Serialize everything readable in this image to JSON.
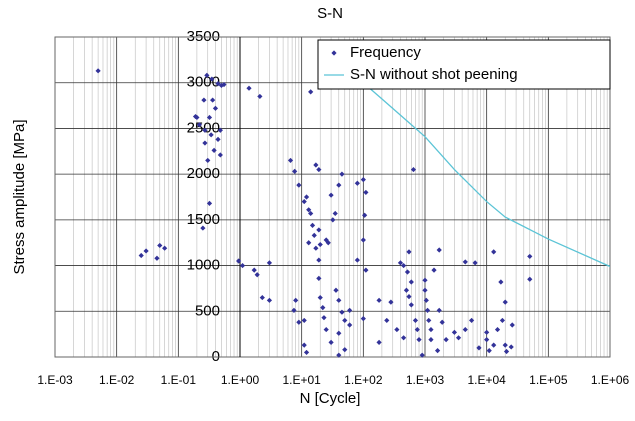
{
  "chart_data": {
    "type": "scatter",
    "title": "S-N",
    "x_label": "N [Cycle]",
    "y_label": "Stress amplitude [MPa]",
    "xscale": "log",
    "xlim": [
      0.001,
      1000000
    ],
    "xticks": [
      {
        "value": 0.001,
        "label": "1.E-03"
      },
      {
        "value": 0.01,
        "label": "1.E-02"
      },
      {
        "value": 0.1,
        "label": "1.E-01"
      },
      {
        "value": 1,
        "label": "1.E+00"
      },
      {
        "value": 10,
        "label": "1.E+01"
      },
      {
        "value": 100,
        "label": "1.E+02"
      },
      {
        "value": 1000,
        "label": "1.E+03"
      },
      {
        "value": 10000,
        "label": "1.E+04"
      },
      {
        "value": 100000,
        "label": "1.E+05"
      },
      {
        "value": 1000000,
        "label": "1.E+06"
      }
    ],
    "ylim": [
      0,
      3500
    ],
    "yticks": [
      0,
      500,
      1000,
      1500,
      2000,
      2500,
      3000,
      3500
    ],
    "y_axis_crosses_x": 1,
    "grid": true,
    "minor_grid": true,
    "legend": "top-right",
    "series": [
      {
        "name": "Frequency",
        "mode": "markers",
        "color": "#333399",
        "x": [
          0.005,
          0.025,
          0.03,
          0.045,
          0.05,
          0.06,
          0.19,
          0.22,
          0.26,
          0.29,
          0.32,
          0.35,
          0.36,
          0.4,
          0.44,
          0.48,
          0.32,
          0.44,
          0.55,
          0.27,
          0.34,
          0.38,
          0.48,
          0.2,
          0.27,
          0.25,
          0.3,
          0.5,
          1.4,
          2.1,
          0.95,
          1.1,
          1.7,
          1.9,
          2.3,
          3,
          3,
          6.6,
          7.7,
          9,
          11,
          12,
          13,
          14,
          15,
          16,
          17,
          19,
          19,
          20,
          22,
          23,
          25,
          14,
          17,
          19,
          27,
          30,
          32,
          35,
          40,
          45,
          13,
          19,
          20,
          25,
          8,
          7.5,
          9,
          11,
          12,
          36,
          40,
          45,
          50,
          60,
          40,
          30,
          50,
          80,
          100,
          110,
          105,
          80,
          100,
          110,
          180,
          240,
          280,
          350,
          450,
          500,
          550,
          600,
          700,
          750,
          800,
          600,
          520,
          450,
          400,
          550,
          650,
          1000,
          1000,
          1050,
          1100,
          1150,
          1250,
          1250,
          1400,
          1700,
          1700,
          1900,
          1600,
          2200,
          3000,
          3500,
          4500,
          5700,
          7500,
          10000,
          11000,
          13000,
          15000,
          18000,
          20000,
          25000,
          26000,
          17000,
          13000,
          4500,
          6500,
          20000,
          21000,
          10000,
          50000,
          50000,
          900,
          40,
          11,
          100,
          180,
          60
        ],
        "values": [
          3130,
          1110,
          1160,
          1080,
          1220,
          1190,
          2630,
          2540,
          2810,
          3080,
          2620,
          3040,
          2810,
          2720,
          2380,
          2210,
          1680,
          2990,
          2980,
          2480,
          2430,
          2260,
          2480,
          2620,
          2340,
          1410,
          2150,
          2970,
          2940,
          2850,
          1050,
          1000,
          950,
          900,
          650,
          620,
          1030,
          2150,
          2030,
          1880,
          1700,
          1750,
          1610,
          1570,
          1440,
          1330,
          1190,
          1060,
          860,
          650,
          540,
          430,
          300,
          2900,
          2100,
          2050,
          1250,
          1770,
          1500,
          1570,
          1880,
          2000,
          1250,
          1390,
          1230,
          1280,
          620,
          510,
          380,
          130,
          50,
          730,
          620,
          490,
          400,
          350,
          260,
          160,
          80,
          1060,
          1280,
          950,
          1550,
          1900,
          1940,
          1800,
          160,
          400,
          600,
          300,
          210,
          730,
          660,
          570,
          400,
          300,
          190,
          820,
          930,
          1000,
          1030,
          1150,
          2050,
          840,
          730,
          620,
          510,
          400,
          300,
          190,
          950,
          1170,
          510,
          380,
          70,
          190,
          270,
          210,
          300,
          400,
          100,
          190,
          70,
          130,
          300,
          400,
          130,
          110,
          350,
          820,
          1150,
          1040,
          1030,
          600,
          60,
          270,
          1100,
          850,
          20,
          20,
          400,
          420,
          620,
          510
        ]
      },
      {
        "name": "S-N without shot peening",
        "mode": "lines",
        "color": "#5bc4d6",
        "x": [
          100,
          1000,
          3000,
          10000,
          20000,
          100000,
          1000000
        ],
        "values": [
          3000,
          2410,
          2050,
          1700,
          1530,
          1290,
          990
        ]
      }
    ]
  }
}
